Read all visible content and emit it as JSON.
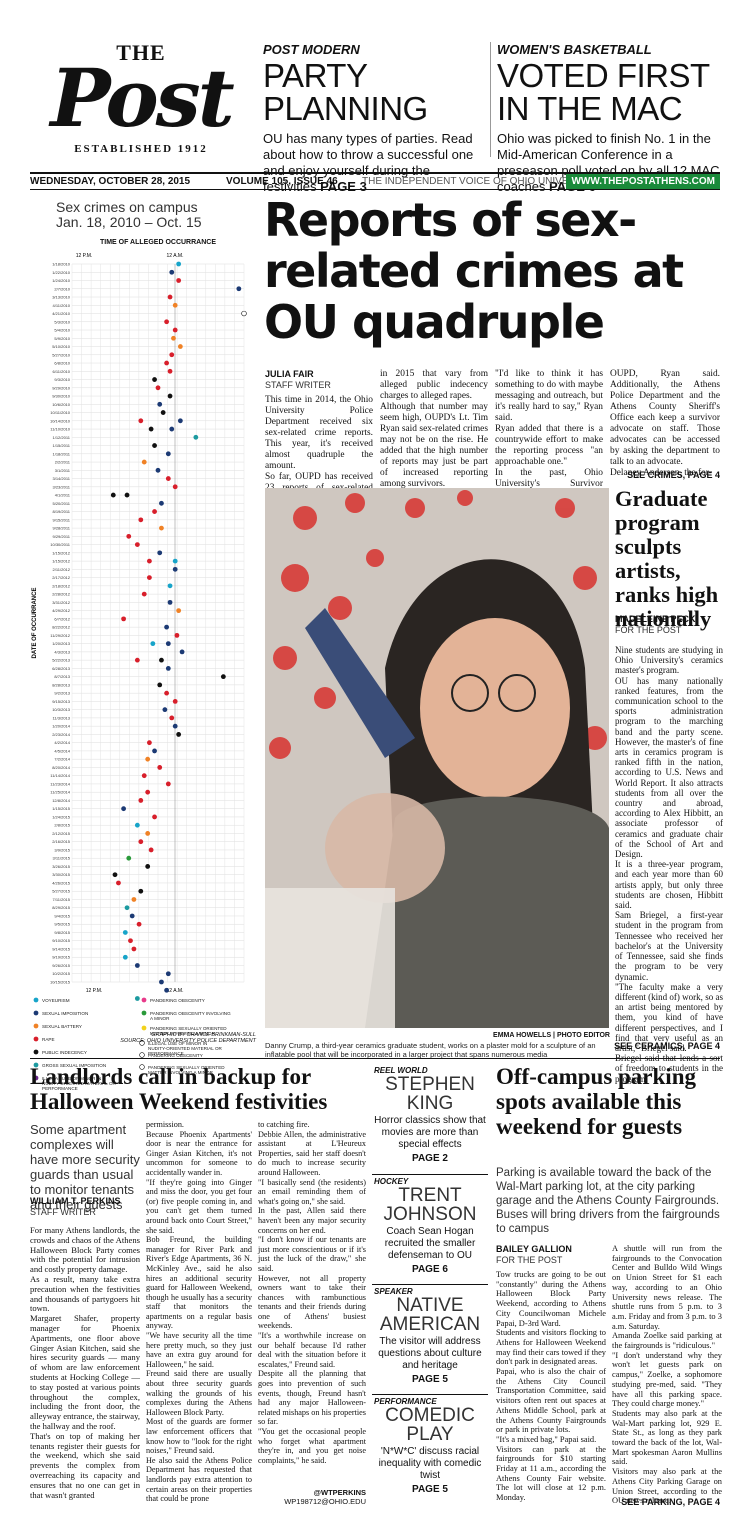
{
  "masthead": {
    "the": "THE",
    "post": "Post",
    "established": "ESTABLISHED 1912"
  },
  "teasers": [
    {
      "kicker": "POST MODERN",
      "title": "PARTY\nPLANNING",
      "desc": "OU has many types of parties. Read about how to throw a successful one and enjoy yourself during the festivities",
      "page": "PAGE 3"
    },
    {
      "kicker": "WOMEN'S BASKETBALL",
      "title": "VOTED FIRST\nIN THE MAC",
      "desc": "Ohio was picked to finish No. 1 in the Mid-American Conference in a preseason poll voted on by all 12 MAC coaches",
      "page": "PAGE 6"
    }
  ],
  "dateline": {
    "date": "WEDNESDAY, OCTOBER 28, 2015",
    "volume": "VOLUME 105, ISSUE 46",
    "tagline": "THE INDEPENDENT VOICE OF OHIO UNIVERSITY",
    "url": "WWW.THEPOSTATHENS.COM"
  },
  "chart_data": {
    "type": "scatter",
    "title": "Sex crimes on campus\nJan. 18, 2010 – Oct. 15",
    "xlabel": "TIME OF ALLEGED OCCURRANCE",
    "ylabel": "DATE OF OCCURRANCE",
    "x_ticks": [
      "12 P.M.",
      "12 A.M.",
      "12 P.M."
    ],
    "y_ticks": [
      "1/18/2010",
      "1/22/2010",
      "1/24/2010",
      "2/7/2010",
      "3/13/2010",
      "4/11/2010",
      "4/21/2010",
      "5/3/2010",
      "5/4/2010",
      "5/9/2010",
      "5/10/2010",
      "5/27/2010",
      "6/8/2010",
      "6/11/2010",
      "9/3/2010",
      "9/29/2010",
      "9/30/2010",
      "10/6/2010",
      "10/11/2010",
      "10/14/2010",
      "11/10/2010",
      "1/12/2011",
      "1/15/2011",
      "1/18/2011",
      "2/2/2011",
      "3/1/2011",
      "3/14/2011",
      "3/23/2011",
      "4/1/2011",
      "5/20/2011",
      "8/19/2011",
      "9/15/2011",
      "9/28/2011",
      "9/29/2011",
      "10/30/2011",
      "1/15/2012",
      "1/15/2012",
      "2/11/2012",
      "2/17/2012",
      "2/18/2012",
      "2/28/2012",
      "3/31/2012",
      "4/29/2012",
      "6/7/2012",
      "8/22/2012",
      "11/29/2012",
      "1/20/2013",
      "4/3/2013",
      "5/22/2013",
      "6/28/2013",
      "8/7/2013",
      "8/28/2013",
      "9/2/2013",
      "9/15/2013",
      "10/3/2013",
      "11/3/2013",
      "1/20/2014",
      "2/23/2014",
      "4/2/2014",
      "4/5/2014",
      "7/2/2014",
      "8/20/2014",
      "11/14/2014",
      "11/23/2014",
      "11/25/2014",
      "12/8/2014",
      "1/15/2015",
      "1/24/2015",
      "2/8/2015",
      "2/12/2015",
      "2/16/2015",
      "3/9/2015",
      "3/11/2015",
      "3/26/2015",
      "3/30/2015",
      "4/26/2015",
      "5/27/2015",
      "7/11/2015",
      "8/29/2015",
      "9/4/2015",
      "9/5/2015",
      "9/8/2015",
      "9/10/2015",
      "9/14/2015",
      "9/19/2015",
      "9/26/2015",
      "10/2/2015",
      "10/15/2015"
    ],
    "series": [
      {
        "name": "VOYEURISM",
        "color": "#17a4c9"
      },
      {
        "name": "SEXUAL IMPOSITION",
        "color": "#1c3a74"
      },
      {
        "name": "SEXUAL BATTERY",
        "color": "#f08226"
      },
      {
        "name": "RAPE",
        "color": "#d81f2b"
      },
      {
        "name": "PUBLIC INDECENCY",
        "color": "#111111"
      },
      {
        "name": "GROSS SEXUAL IMPOSITION",
        "color": "#1c9aa0"
      },
      {
        "name": "ILLEGAL USE OF MINOR IN NUDITY-ORIENTED MATERIAL OR PERFORMANCE",
        "color": "#6a2a8a"
      },
      {
        "name": "PANDERING OBSCENITY",
        "color": "#e83a8a"
      },
      {
        "name": "PANDERING OBSCENITY INVOLVING A MINOR",
        "color": "#2a9a3a"
      },
      {
        "name": "PANDERING SEXUALLY ORIENTED MATTER INVOLVING A MINOR",
        "color": "#f2d21c"
      },
      {
        "name": "ILLEGAL USE OF MINOR IN NUDITY-ORIENTED MATERIAL OR PERFORMANCE",
        "color": "#ffffff"
      },
      {
        "name": "PANDERING OBSCENITY",
        "color": "#ffffff"
      },
      {
        "name": "PANDERING SEXUALLY ORIENTED MATTER INVOLVING A MINOR",
        "color": "#ffffff"
      }
    ],
    "points": [
      [
        0.62,
        0,
        0
      ],
      [
        0.58,
        1,
        1
      ],
      [
        0.62,
        2,
        3
      ],
      [
        0.97,
        3,
        1
      ],
      [
        0.57,
        4,
        3
      ],
      [
        0.6,
        5,
        2
      ],
      [
        1.0,
        6,
        10
      ],
      [
        0.55,
        7,
        3
      ],
      [
        0.6,
        8,
        3
      ],
      [
        0.59,
        9,
        2
      ],
      [
        0.63,
        10,
        2
      ],
      [
        0.58,
        11,
        3
      ],
      [
        0.55,
        12,
        3
      ],
      [
        0.57,
        13,
        3
      ],
      [
        0.48,
        14,
        4
      ],
      [
        0.5,
        15,
        3
      ],
      [
        0.57,
        16,
        4
      ],
      [
        0.51,
        17,
        1
      ],
      [
        0.53,
        18,
        4
      ],
      [
        0.4,
        19,
        3
      ],
      [
        0.63,
        19,
        1
      ],
      [
        0.46,
        20,
        4
      ],
      [
        0.58,
        20,
        1
      ],
      [
        0.72,
        21,
        5
      ],
      [
        0.48,
        22,
        4
      ],
      [
        0.56,
        23,
        1
      ],
      [
        0.42,
        24,
        2
      ],
      [
        0.5,
        25,
        1
      ],
      [
        0.56,
        26,
        3
      ],
      [
        0.6,
        27,
        3
      ],
      [
        0.24,
        28,
        4
      ],
      [
        0.32,
        28,
        4
      ],
      [
        0.52,
        29,
        1
      ],
      [
        0.48,
        30,
        3
      ],
      [
        0.4,
        31,
        3
      ],
      [
        0.52,
        32,
        2
      ],
      [
        0.33,
        33,
        3
      ],
      [
        0.38,
        34,
        3
      ],
      [
        0.51,
        35,
        1
      ],
      [
        0.6,
        36,
        0
      ],
      [
        0.45,
        36,
        3
      ],
      [
        0.6,
        37,
        1
      ],
      [
        0.45,
        38,
        3
      ],
      [
        0.57,
        39,
        0
      ],
      [
        0.42,
        40,
        3
      ],
      [
        0.57,
        41,
        1
      ],
      [
        0.62,
        42,
        2
      ],
      [
        0.3,
        43,
        3
      ],
      [
        0.55,
        44,
        1
      ],
      [
        0.61,
        45,
        3
      ],
      [
        0.47,
        46,
        0
      ],
      [
        0.56,
        46,
        1
      ],
      [
        0.64,
        47,
        1
      ],
      [
        0.38,
        48,
        3
      ],
      [
        0.52,
        48,
        4
      ],
      [
        0.56,
        49,
        1
      ],
      [
        0.88,
        50,
        4
      ],
      [
        0.51,
        51,
        4
      ],
      [
        0.55,
        52,
        3
      ],
      [
        0.6,
        53,
        3
      ],
      [
        0.54,
        54,
        1
      ],
      [
        0.58,
        55,
        3
      ],
      [
        0.6,
        56,
        1
      ],
      [
        0.62,
        57,
        4
      ],
      [
        0.45,
        58,
        3
      ],
      [
        0.48,
        59,
        1
      ],
      [
        0.44,
        60,
        2
      ],
      [
        0.51,
        61,
        3
      ],
      [
        0.42,
        62,
        3
      ],
      [
        0.56,
        63,
        3
      ],
      [
        0.44,
        64,
        3
      ],
      [
        0.4,
        65,
        3
      ],
      [
        0.3,
        66,
        1
      ],
      [
        0.48,
        67,
        3
      ],
      [
        0.38,
        68,
        0
      ],
      [
        0.44,
        69,
        2
      ],
      [
        0.4,
        70,
        3
      ],
      [
        0.46,
        71,
        3
      ],
      [
        0.33,
        72,
        8
      ],
      [
        0.44,
        73,
        4
      ],
      [
        0.25,
        74,
        4
      ],
      [
        0.27,
        75,
        3
      ],
      [
        0.4,
        76,
        4
      ],
      [
        0.36,
        77,
        2
      ],
      [
        0.32,
        78,
        5
      ],
      [
        0.35,
        79,
        1
      ],
      [
        0.39,
        80,
        3
      ],
      [
        0.31,
        81,
        0
      ],
      [
        0.34,
        82,
        3
      ],
      [
        0.36,
        83,
        3
      ],
      [
        0.31,
        84,
        0
      ],
      [
        0.38,
        85,
        1
      ],
      [
        0.56,
        86,
        1
      ],
      [
        0.52,
        87,
        1
      ],
      [
        0.55,
        88,
        1
      ],
      [
        0.38,
        89,
        5
      ]
    ],
    "credit": "GRAPHIC BY CHANCE BRINKMAN-SULL\nSOURCE: OHIO UNIVERSITY POLICE DEPARTMENT"
  },
  "lead": {
    "headline": "Reports of sex-related crimes at OU quadruple",
    "byline": "JULIA FAIR",
    "bytitle": "STAFF WRITER",
    "col1": "This time in 2014, the Ohio University Police Department received six sex-related crime reports. This year, it's received almost quadruple the amount.\nSo far, OUPD has received 23 reports of sex-related crime",
    "col2": "in 2015 that vary from alleged public indecency charges to alleged rapes.\nAlthough that number may seem high, OUPD's Lt. Tim Ryan said sex-related crimes may not be on the rise. He added that the high number of reports may just be part of increased reporting among survivors.",
    "col3": "\"I'd like to think it has something to do with maybe messaging and outreach, but it's really hard to say,\" Ryan said.\nRyan added that there is a countrywide effort to make the reporting process \"an approachable one.\"\nIn the past, Ohio University's Survivor Advocacy Program worked very well with",
    "col4": "OUPD, Ryan said. Additionally, the Athens Police Department and the Athens County Sheriff's Office each keep a survivor advocate on staff. Those advocates can be accessed by asking the department to talk to an advocate.\nDelaney Anderson, the for-",
    "see": "SEE CRIMES, PAGE 4"
  },
  "photo": {
    "credit": "EMMA HOWELLS | PHOTO EDITOR",
    "caption": "Danny Crump, a third-year ceramics graduate student, works on a plaster mold for a sculpture of an inflatable pool that will be incorporated in a larger project that spans numerous media"
  },
  "grad": {
    "headline": "Graduate program sculpts artists, ranks high nationally",
    "byline": "MADELEINE PECK",
    "bytitle": "FOR THE POST",
    "body": "Nine students are studying in Ohio University's ceramics master's program.\nOU has many nationally ranked features, from the communication school to the sports administration program to the marching band and the party scene. However, the master's of fine arts in ceramics program is ranked fifth in the nation, according to U.S. News and World Report. It also attracts students from all over the country and abroad, according to Alex Hibbitt, an associate professor of ceramics and graduate chair of the School of Art and Design.\nIt is a three-year program, and each year more than 60 artists apply, but only three students are chosen, Hibbitt said.\nSam Briegel, a first-year student in the program from Tennessee who received her bachelor's at the University of Tennessee, said she finds the program to be very dynamic.\n\"The faculty make a very different (kind of) work, so as an artist being mentored by them, you kind of have different perspectives, and I find that very useful as an artist,\" Briegel said.\nBriegel said that lends a sort of freedom to students in the program.",
    "see": "SEE CERAMICS, PAGE 4"
  },
  "landlords": {
    "headline": "Landlords call in backup for Halloween Weekend festivities",
    "deck": "Some apartment complexes will have more security guards than usual to monitor tenants and their guests",
    "byline": "WILLIAM T. PERKINS",
    "bytitle": "STAFF WRITER",
    "col1": "For many Athens landlords, the crowds and chaos of the Athens Halloween Block Party comes with the potential for intrusion and costly property damage.\nAs a result, many take extra precaution when the festivities and thousands of partygoers hit town.\nMargaret Shafer, property manager for Phoenix Apartments, one floor above Ginger Asian Kitchen, said she hires security guards — many of whom are law enforcement students at Hocking College — to stay posted at various points throughout the complex, including the front door, the alleyway entrance, the stairway, the hallway and the roof.\nThat's on top of making her tenants register their guests for the weekend, which she said prevents the complex from overreaching its capacity and ensures that no one can get in that wasn't granted",
    "col2": "permission.\nBecause Phoenix Apartments' door is near the entrance for Ginger Asian Kitchen, it's not uncommon for someone to accidentally wander in.\n\"If they're going into Ginger and miss the door, you get four (or) five people coming in, and you can't get them turned around back onto Court Street,\" she said.\nBob Freund, the building manager for River Park and River's Edge Apartments, 36 N. McKinley Ave., said he also hires an additional security guard for Halloween Weekend, though he usually has a security staff that monitors the apartments on a regular basis anyway.\n\"We have security all the time here pretty much, so they just have an extra guy around for Halloween,\" he said.\nFreund said there are usually about three security guards walking the grounds of his complexes during the Athens Halloween Block Party.\nMost of the guards are former law enforcement officers that know how to \"look for the right noises,\" Freund said.\nHe also said the Athens Police Department has requested that landlords pay extra attention to certain areas on their properties that could be prone",
    "col3": "to catching fire.\nDebbie Allen, the administrative assistant at L'Heureux Properties, said her staff doesn't do much to increase security around Halloween.\n\"I basically send (the residents) an email reminding them of what's going on,\" she said.\nIn the past, Allen said there haven't been any major security concerns on her end.\n\"I don't know if our tenants are just more conscientious or if it's just the luck of the draw,\" she said.\nHowever, not all property owners want to take their chances with rambunctious tenants and their friends during one of Athens' busiest weekends.\n\"It's a worthwhile increase on our behalf because I'd rather deal with the situation before it escalates,\" Freund said.\nDespite all the planning that goes into prevention of such events, though, Freund hasn't had any major Halloween-related mishaps on his properties so far.\n\"You get the occasional people who forget what apartment they're in, and you get noise complaints,\" he said.",
    "twitter": "@WTPERKINS",
    "email": "WP198712@OHIO.EDU"
  },
  "sidebox": [
    {
      "kicker": "REEL WORLD",
      "title": "STEPHEN\nKING",
      "desc": "Horror classics show that movies are more than special effects",
      "page": "PAGE 2"
    },
    {
      "kicker": "HOCKEY",
      "title": "TRENT\nJOHNSON",
      "desc": "Coach Sean Hogan recruited the smaller defenseman to OU",
      "page": "PAGE 6"
    },
    {
      "kicker": "SPEAKER",
      "title": "NATIVE\nAMERICAN",
      "desc": "The visitor will address questions about culture and heritage",
      "page": "PAGE 5"
    },
    {
      "kicker": "PERFORMANCE",
      "title": "COMEDIC\nPLAY",
      "desc": "'N*W*C' discuss racial inequality with comedic twist",
      "page": "PAGE 5"
    }
  ],
  "parking": {
    "headline": "Off-campus parking spots available this weekend for guests",
    "deck": "Parking is available toward the back of the Wal-Mart parking lot, at the city parking garage and the Athens County Fairgrounds. Buses will bring drivers from the fairgrounds to campus",
    "byline": "BAILEY GALLION",
    "bytitle": "FOR THE POST",
    "col1": "Tow trucks are going to be out \"constantly\" during the Athens Halloween Block Party Weekend, according to Athens City Councilwoman Michele Papai, D-3rd Ward.\nStudents and visitors flocking to Athens for Halloween Weekend may find their cars towed if they don't park in designated areas.\nPapai, who is also the chair of the Athens City Council Transportation Committee, said visitors often rent out spaces at Athens Middle School, park at the Athens County Fairgrounds or park in private lots.\n\"It's a mixed bag,\" Papai said.\nVisitors can park at the fairgrounds for $10 starting Friday at 11 a.m., according the Athens County Fair website. The lot will close at 12 p.m. Monday.",
    "col2": "A shuttle will run from the fairgrounds to the Convocation Center and Bulldo Wild Wings on Union Street for $1 each way, according to an Ohio University news release. The shuttle runs from 5 p.m. to 3 a.m. Friday and from 3 p.m. to 3 a.m. Saturday.\nAmanda Zoelke said parking at the fairgrounds is \"ridiculous.\"\n\"I don't understand why they won't let guests park on campus,\" Zoelke, a sophomore studying pre-med, said. \"They have all this parking space. They could charge money.\"\nStudents may also park at the Wal-Mart parking lot, 929 E. State St., as long as they park toward the back of the lot, Wal-Mart spokesman Aaron Mullins said.\nVisitors may also park at the Athens City Parking Garage on Union Street, according to the OU news release.",
    "see": "SEE PARKING, PAGE 4"
  }
}
